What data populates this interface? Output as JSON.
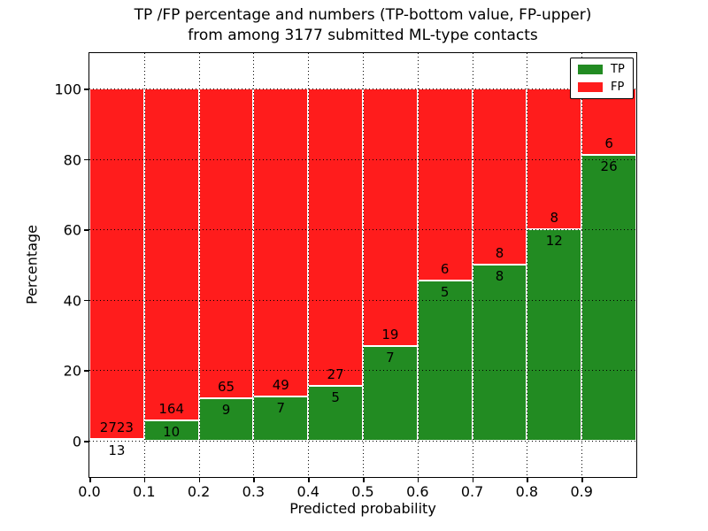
{
  "title": {
    "line1": "TP /FP percentage and numbers (TP-bottom value, FP-upper)",
    "line2": "from among 3177 submitted ML-type contacts"
  },
  "colors": {
    "tp_green": "#228b22",
    "fp_red": "#ff1c1c",
    "background": "#ffffff",
    "axis": "#000000"
  },
  "chart_data": {
    "type": "bar",
    "stacked": true,
    "normalized": "each bin stacks to 100%",
    "title": "TP /FP percentage and numbers (TP-bottom value, FP-upper)\nfrom among 3177 submitted ML-type contacts",
    "xlabel": "Predicted probability",
    "ylabel": "Percentage",
    "xlim": [
      0.0,
      1.0
    ],
    "ylim": [
      -10,
      110
    ],
    "grid": true,
    "total_contacts": 3177,
    "xtick_labels": [
      "0.0",
      "0.1",
      "0.2",
      "0.3",
      "0.4",
      "0.5",
      "0.6",
      "0.7",
      "0.8",
      "0.9"
    ],
    "ytick_values": [
      0,
      20,
      40,
      60,
      80,
      100
    ],
    "ytick_labels": [
      "0",
      "20",
      "40",
      "60",
      "80",
      "100"
    ],
    "legend": {
      "position": "upper right",
      "entries": [
        {
          "label": "TP",
          "color": "#228b22"
        },
        {
          "label": "FP",
          "color": "#ff1c1c"
        }
      ]
    },
    "bins": [
      {
        "x_start": 0.0,
        "x_end": 0.1,
        "tp": 13,
        "fp": 2723,
        "tp_pct": 0.48,
        "fp_pct": 99.52
      },
      {
        "x_start": 0.1,
        "x_end": 0.2,
        "tp": 10,
        "fp": 164,
        "tp_pct": 5.75,
        "fp_pct": 94.25
      },
      {
        "x_start": 0.2,
        "x_end": 0.3,
        "tp": 9,
        "fp": 65,
        "tp_pct": 12.16,
        "fp_pct": 87.84
      },
      {
        "x_start": 0.3,
        "x_end": 0.4,
        "tp": 7,
        "fp": 49,
        "tp_pct": 12.5,
        "fp_pct": 87.5
      },
      {
        "x_start": 0.4,
        "x_end": 0.5,
        "tp": 5,
        "fp": 27,
        "tp_pct": 15.63,
        "fp_pct": 84.37
      },
      {
        "x_start": 0.5,
        "x_end": 0.6,
        "tp": 7,
        "fp": 19,
        "tp_pct": 26.92,
        "fp_pct": 73.08
      },
      {
        "x_start": 0.6,
        "x_end": 0.7,
        "tp": 5,
        "fp": 6,
        "tp_pct": 45.45,
        "fp_pct": 54.55
      },
      {
        "x_start": 0.7,
        "x_end": 0.8,
        "tp": 8,
        "fp": 8,
        "tp_pct": 50.0,
        "fp_pct": 50.0
      },
      {
        "x_start": 0.8,
        "x_end": 0.9,
        "tp": 12,
        "fp": 8,
        "tp_pct": 60.0,
        "fp_pct": 40.0
      },
      {
        "x_start": 0.9,
        "x_end": 1.0,
        "tp": 26,
        "fp": 6,
        "tp_pct": 81.25,
        "fp_pct": 18.75
      }
    ]
  }
}
